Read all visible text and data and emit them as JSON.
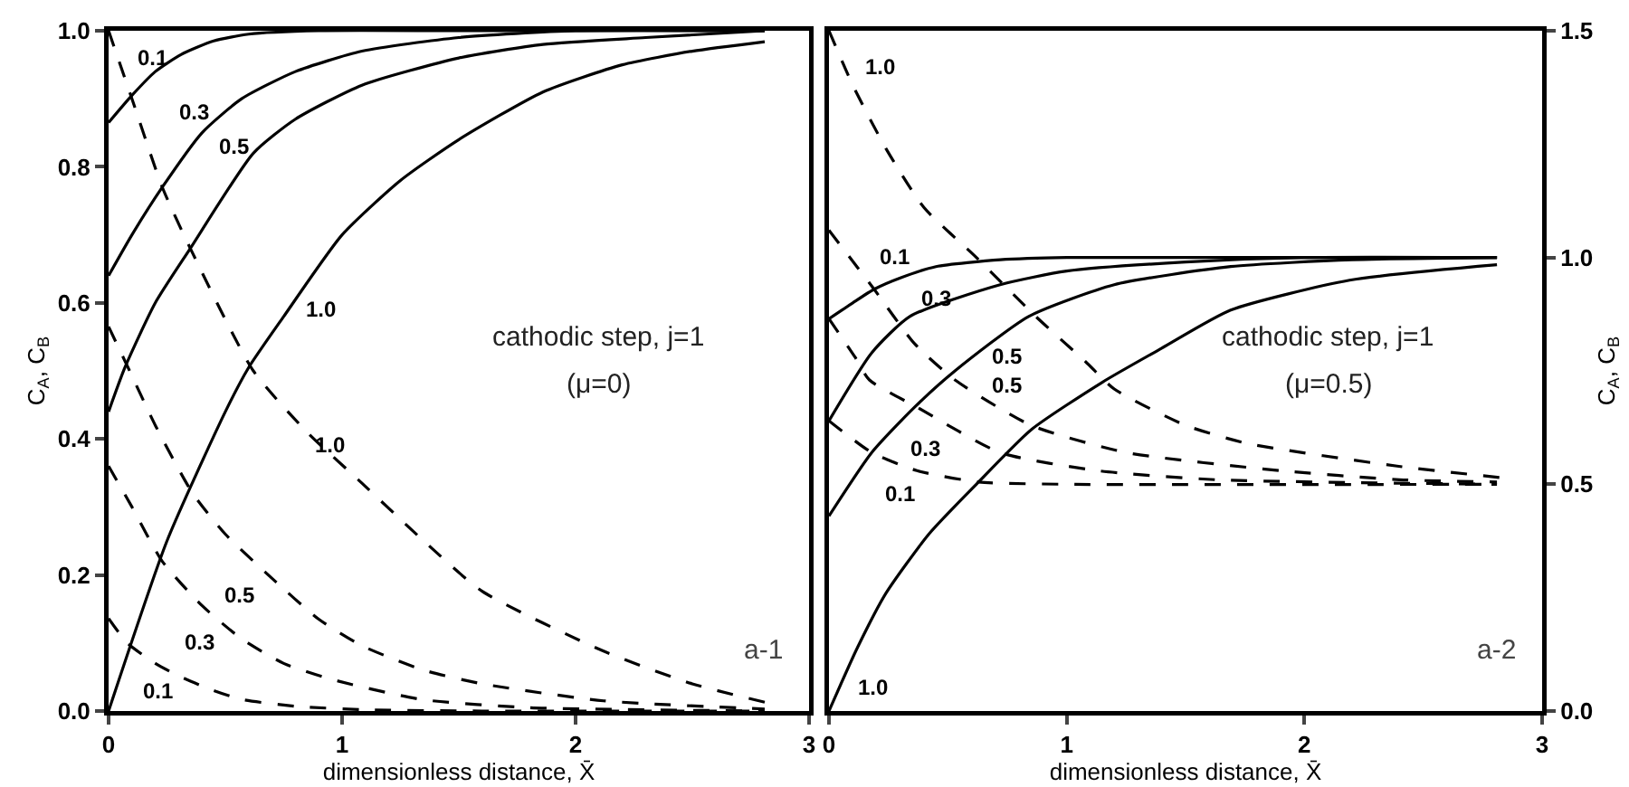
{
  "chart_data": [
    {
      "type": "line",
      "xlabel": "dimensionless distance, X̄",
      "ylabel": "C$_{A}$, C$_{B}$",
      "xlim": [
        0,
        3
      ],
      "xticks": [
        0,
        1,
        2,
        3
      ],
      "ylim": [
        0,
        1
      ],
      "yticks": [
        {
          "value": 0,
          "label": "0.0"
        },
        {
          "value": 0.2,
          "label": "0.2"
        },
        {
          "value": 0.4,
          "label": "0.4"
        },
        {
          "value": 0.6,
          "label": "0.6"
        },
        {
          "value": 0.8,
          "label": "0.8"
        },
        {
          "value": 1,
          "label": "1.0"
        }
      ],
      "series": [
        {
          "name": "0.1",
          "color": "#000000",
          "line_style": "solid",
          "x": [
            0,
            0.1,
            0.2,
            0.31,
            0.45,
            0.6,
            0.9,
            1.5,
            2.81
          ],
          "values": [
            0.865,
            0.905,
            0.94,
            0.965,
            0.985,
            0.995,
            1.0,
            1.0,
            1.0
          ]
        },
        {
          "name": "0.3",
          "color": "#000000",
          "line_style": "solid",
          "x": [
            0,
            0.1,
            0.23,
            0.4,
            0.57,
            0.8,
            1.085,
            1.5,
            2.0,
            2.81
          ],
          "values": [
            0.64,
            0.7,
            0.77,
            0.85,
            0.9,
            0.94,
            0.97,
            0.99,
            1.0,
            1.0
          ]
        },
        {
          "name": "0.5",
          "color": "#000000",
          "line_style": "solid",
          "x": [
            0,
            0.07,
            0.2,
            0.35,
            0.62,
            0.8,
            1.085,
            1.5,
            1.86,
            2.3,
            2.81
          ],
          "values": [
            0.44,
            0.505,
            0.6,
            0.68,
            0.82,
            0.87,
            0.92,
            0.96,
            0.98,
            0.99,
            1.0
          ]
        },
        {
          "name": "1.0",
          "color": "#000000",
          "line_style": "solid",
          "x": [
            0,
            0.25,
            0.5,
            0.6,
            0.75,
            1.0,
            1.25,
            1.5,
            1.86,
            2.2,
            2.5,
            2.81
          ],
          "values": [
            0,
            0.25,
            0.44,
            0.505,
            0.58,
            0.7,
            0.78,
            0.84,
            0.91,
            0.95,
            0.97,
            0.984
          ]
        },
        {
          "name": "1.0",
          "color": "#000000",
          "line_style": "dashed",
          "x": [
            0,
            0.1,
            0.23,
            0.35,
            0.62,
            0.85,
            1.085,
            1.35,
            1.6,
            2.12,
            2.5,
            2.81
          ],
          "values": [
            1.0,
            0.9,
            0.77,
            0.68,
            0.5,
            0.41,
            0.335,
            0.25,
            0.176,
            0.088,
            0.04,
            0.013
          ]
        },
        {
          "name": "0.5",
          "color": "#000000",
          "line_style": "dashed",
          "x": [
            0,
            0.09,
            0.2,
            0.36,
            0.5,
            0.7,
            0.9,
            1.085,
            1.35,
            1.6,
            2.12,
            2.81
          ],
          "values": [
            0.565,
            0.5,
            0.42,
            0.32,
            0.26,
            0.195,
            0.135,
            0.096,
            0.06,
            0.04,
            0.015,
            0.003
          ]
        },
        {
          "name": "0.3",
          "color": "#000000",
          "line_style": "dashed",
          "x": [
            0,
            0.1,
            0.23,
            0.4,
            0.57,
            0.75,
            0.95,
            1.34,
            1.8,
            2.81
          ],
          "values": [
            0.36,
            0.3,
            0.22,
            0.155,
            0.106,
            0.07,
            0.047,
            0.017,
            0.005,
            0
          ]
        },
        {
          "name": "0.1",
          "color": "#000000",
          "line_style": "dashed",
          "x": [
            0,
            0.08,
            0.2,
            0.31,
            0.45,
            0.57,
            0.8,
            1.09,
            1.6,
            2.81
          ],
          "values": [
            0.136,
            0.1,
            0.07,
            0.05,
            0.03,
            0.017,
            0.007,
            0.002,
            0,
            0
          ]
        }
      ],
      "annotations": [
        "cathodic step, j=1",
        "(μ=0)",
        "a-1"
      ]
    },
    {
      "type": "line",
      "xlabel": "dimensionless distance, X̄",
      "y2label": "C$_{A}$, C$_{B}$",
      "xlim": [
        0,
        3
      ],
      "xticks": [
        0,
        1,
        2,
        3
      ],
      "y2lim": [
        0,
        1.5
      ],
      "y2ticks": [
        {
          "value": 0,
          "label": "0.0"
        },
        {
          "value": 0.5,
          "label": "0.5"
        },
        {
          "value": 1,
          "label": "1.0"
        },
        {
          "value": 1.5,
          "label": "1.5"
        }
      ],
      "series": [
        {
          "name": "0.1",
          "color": "#000000",
          "line_style": "solid",
          "axis": "y2",
          "x": [
            0,
            0.1,
            0.19,
            0.3,
            0.45,
            0.72,
            1.0,
            2.81
          ],
          "values": [
            0.865,
            0.9,
            0.93,
            0.955,
            0.98,
            0.995,
            1.0,
            1.0
          ]
        },
        {
          "name": "0.3",
          "color": "#000000",
          "line_style": "solid",
          "axis": "y2",
          "x": [
            0,
            0.18,
            0.34,
            0.72,
            1.0,
            1.5,
            2.0,
            2.81
          ],
          "values": [
            0.64,
            0.79,
            0.87,
            0.94,
            0.97,
            0.99,
            1.0,
            1.0
          ]
        },
        {
          "name": "0.5",
          "color": "#000000",
          "line_style": "solid",
          "axis": "y2",
          "x": [
            0,
            0.18,
            0.36,
            0.53,
            0.84,
            1.2,
            1.69,
            2.2,
            2.81
          ],
          "values": [
            0.43,
            0.57,
            0.67,
            0.75,
            0.87,
            0.94,
            0.98,
            0.995,
            1.0
          ]
        },
        {
          "name": "1.0",
          "color": "#000000",
          "line_style": "solid",
          "axis": "y2",
          "x": [
            0,
            0.12,
            0.24,
            0.42,
            0.62,
            0.85,
            1.15,
            1.4,
            1.69,
            2.19,
            2.81
          ],
          "values": [
            0,
            0.14,
            0.26,
            0.39,
            0.5,
            0.62,
            0.725,
            0.8,
            0.884,
            0.95,
            0.984
          ]
        },
        {
          "name": "1.0",
          "color": "#000000",
          "line_style": "dashed",
          "axis": "y2",
          "x": [
            0,
            0.1,
            0.24,
            0.4,
            0.62,
            0.87,
            1.08,
            1.2,
            1.5,
            1.76,
            2.39,
            2.82
          ],
          "values": [
            1.5,
            1.38,
            1.24,
            1.11,
            1.0,
            0.87,
            0.77,
            0.71,
            0.63,
            0.59,
            0.54,
            0.515
          ]
        },
        {
          "name": "0.5",
          "color": "#000000",
          "line_style": "dashed",
          "axis": "y2",
          "x": [
            0,
            0.19,
            0.36,
            0.53,
            0.85,
            1.25,
            1.9,
            2.4,
            2.81
          ],
          "values": [
            1.06,
            0.93,
            0.81,
            0.73,
            0.63,
            0.57,
            0.53,
            0.51,
            0.505
          ]
        },
        {
          "name": "0.3",
          "color": "#000000",
          "line_style": "dashed",
          "axis": "y2",
          "x": [
            0,
            0.11,
            0.17,
            0.37,
            0.72,
            1.13,
            1.63,
            2.81
          ],
          "values": [
            0.865,
            0.78,
            0.73,
            0.67,
            0.57,
            0.53,
            0.51,
            0.5
          ]
        },
        {
          "name": "0.1",
          "color": "#000000",
          "line_style": "dashed",
          "axis": "y2",
          "x": [
            0,
            0.18,
            0.37,
            0.63,
            1.0,
            2.81
          ],
          "values": [
            0.64,
            0.57,
            0.53,
            0.505,
            0.5,
            0.5
          ]
        }
      ],
      "annotations": [
        "cathodic step, j=1",
        "(μ=0.5)",
        "a-2"
      ]
    }
  ]
}
